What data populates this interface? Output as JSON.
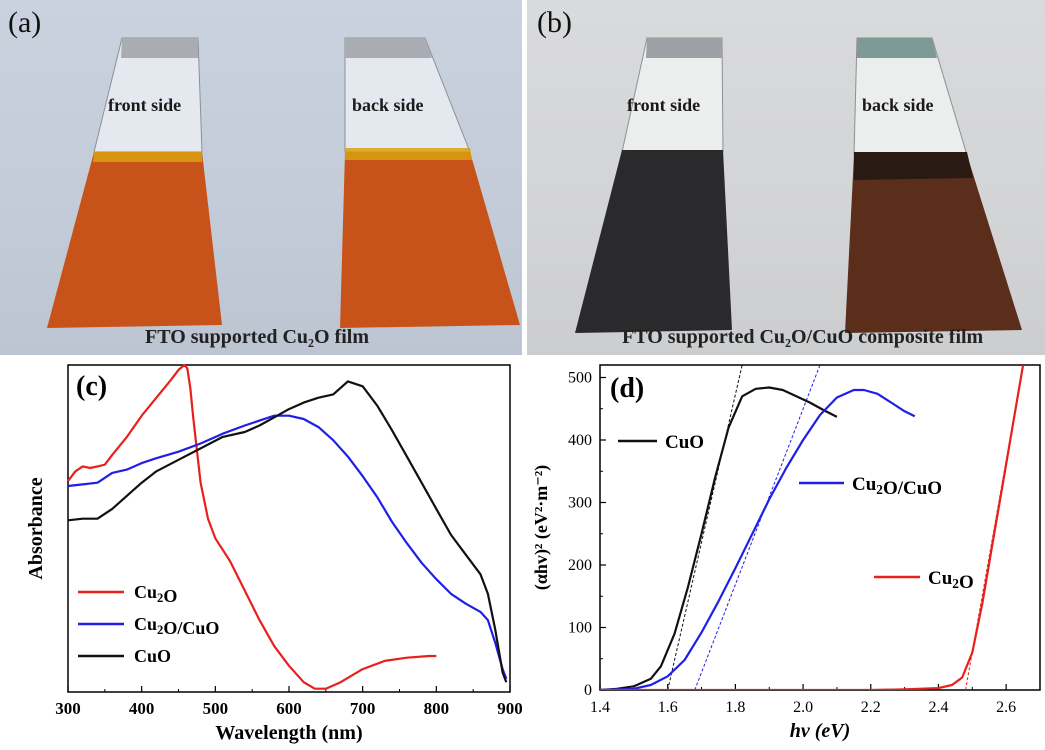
{
  "panel_a": {
    "letter": "(a)",
    "front_label": "front side",
    "back_label": "back side",
    "caption": "FTO supported Cu₂O film",
    "film_color": "#c8531a"
  },
  "panel_b": {
    "letter": "(b)",
    "front_label": "front side",
    "back_label": "back side",
    "caption": "FTO supported Cu₂O/CuO composite film",
    "front_film_color": "#2a2a2c",
    "back_film_color": "#5a2e1a"
  },
  "chart_data": [
    {
      "id": "c",
      "type": "line",
      "panel_letter": "(c)",
      "xlabel": "Wavelength (nm)",
      "ylabel": "Absorbance",
      "xlim": [
        300,
        900
      ],
      "ylim": [
        0,
        1
      ],
      "xticks": [
        300,
        400,
        500,
        600,
        700,
        800,
        900
      ],
      "yticks_shown": false,
      "legend_position": "bottom-left",
      "series": [
        {
          "name": "Cu2O",
          "color": "#e8201b",
          "x": [
            300,
            310,
            320,
            330,
            340,
            350,
            360,
            380,
            400,
            420,
            440,
            450,
            458,
            462,
            466,
            470,
            475,
            480,
            490,
            500,
            520,
            540,
            560,
            580,
            600,
            620,
            635,
            650,
            670,
            700,
            730,
            760,
            790,
            800
          ],
          "y": [
            0.645,
            0.675,
            0.69,
            0.685,
            0.69,
            0.695,
            0.725,
            0.78,
            0.845,
            0.9,
            0.955,
            0.985,
            1.0,
            0.99,
            0.93,
            0.84,
            0.74,
            0.64,
            0.53,
            0.47,
            0.4,
            0.31,
            0.22,
            0.14,
            0.08,
            0.03,
            0.01,
            0.01,
            0.03,
            0.07,
            0.095,
            0.105,
            0.11,
            0.11
          ]
        },
        {
          "name": "Cu2O/CuO",
          "color": "#1f1fe8",
          "x": [
            300,
            320,
            340,
            360,
            380,
            400,
            420,
            450,
            480,
            510,
            540,
            560,
            580,
            600,
            620,
            640,
            660,
            680,
            700,
            720,
            740,
            760,
            780,
            800,
            820,
            840,
            860,
            870,
            880,
            890,
            895
          ],
          "y": [
            0.63,
            0.635,
            0.64,
            0.67,
            0.68,
            0.7,
            0.715,
            0.735,
            0.76,
            0.79,
            0.815,
            0.83,
            0.845,
            0.845,
            0.835,
            0.81,
            0.77,
            0.72,
            0.66,
            0.595,
            0.52,
            0.455,
            0.395,
            0.345,
            0.3,
            0.27,
            0.245,
            0.22,
            0.15,
            0.07,
            0.04
          ]
        },
        {
          "name": "CuO",
          "color": "#111111",
          "x": [
            300,
            320,
            340,
            360,
            380,
            400,
            420,
            450,
            480,
            510,
            540,
            560,
            580,
            600,
            620,
            640,
            660,
            680,
            700,
            720,
            740,
            760,
            780,
            800,
            820,
            840,
            860,
            870,
            880,
            890,
            895
          ],
          "y": [
            0.525,
            0.53,
            0.53,
            0.56,
            0.6,
            0.64,
            0.675,
            0.71,
            0.745,
            0.78,
            0.795,
            0.815,
            0.84,
            0.865,
            0.885,
            0.9,
            0.91,
            0.95,
            0.935,
            0.875,
            0.8,
            0.72,
            0.64,
            0.56,
            0.48,
            0.42,
            0.36,
            0.3,
            0.19,
            0.06,
            0.03
          ]
        }
      ],
      "legend": [
        "Cu2O",
        "Cu2O/CuO",
        "CuO"
      ]
    },
    {
      "id": "d",
      "type": "line",
      "panel_letter": "(d)",
      "xlabel": "hv (eV)",
      "ylabel": "(αhv)² (eV²·m⁻²)",
      "xlim": [
        1.4,
        2.7
      ],
      "ylim": [
        0,
        520
      ],
      "xticks": [
        1.4,
        1.6,
        1.8,
        2.0,
        2.2,
        2.4,
        2.6
      ],
      "yticks": [
        0,
        100,
        200,
        300,
        400,
        500
      ],
      "series": [
        {
          "name": "CuO",
          "color": "#111111",
          "x": [
            1.4,
            1.45,
            1.5,
            1.55,
            1.58,
            1.62,
            1.66,
            1.7,
            1.74,
            1.78,
            1.82,
            1.86,
            1.9,
            1.94,
            1.98,
            2.02,
            2.06,
            2.1
          ],
          "y": [
            0,
            2,
            6,
            18,
            38,
            90,
            165,
            250,
            340,
            420,
            470,
            482,
            484,
            480,
            470,
            460,
            448,
            437
          ]
        },
        {
          "name": "Cu2O/CuO",
          "color": "#1f1fe8",
          "x": [
            1.4,
            1.5,
            1.55,
            1.6,
            1.65,
            1.7,
            1.75,
            1.8,
            1.85,
            1.9,
            1.95,
            2.0,
            2.05,
            2.1,
            2.15,
            2.18,
            2.22,
            2.26,
            2.3,
            2.33
          ],
          "y": [
            0,
            2,
            8,
            22,
            48,
            92,
            142,
            195,
            250,
            305,
            355,
            400,
            440,
            468,
            480,
            480,
            474,
            460,
            446,
            438
          ]
        },
        {
          "name": "Cu2O",
          "color": "#e8201b",
          "x": [
            1.4,
            1.6,
            1.8,
            2.0,
            2.2,
            2.3,
            2.4,
            2.44,
            2.47,
            2.5,
            2.53,
            2.56,
            2.59,
            2.62,
            2.65
          ],
          "y": [
            0,
            0,
            0,
            0,
            0,
            1,
            3,
            8,
            20,
            60,
            140,
            235,
            330,
            425,
            520
          ]
        }
      ],
      "tangents": [
        {
          "name": "CuO",
          "color": "#111111",
          "x": [
            1.6,
            1.82
          ],
          "y": [
            0,
            520
          ]
        },
        {
          "name": "Cu2O/CuO",
          "color": "#1f1fe8",
          "x": [
            1.68,
            2.05
          ],
          "y": [
            0,
            520
          ]
        },
        {
          "name": "Cu2O",
          "color": "#e8201b",
          "x": [
            2.48,
            2.65
          ],
          "y": [
            0,
            520
          ]
        }
      ],
      "labels": [
        {
          "series": "CuO",
          "text": "CuO"
        },
        {
          "series": "Cu2O/CuO",
          "text": "Cu2O/CuO"
        },
        {
          "series": "Cu2O",
          "text": "Cu2O"
        }
      ]
    }
  ]
}
